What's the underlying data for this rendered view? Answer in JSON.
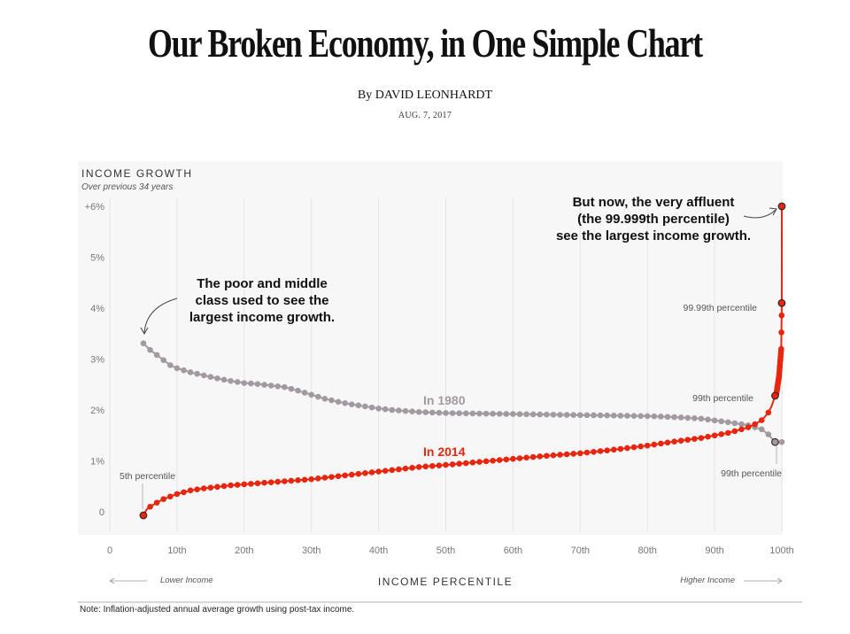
{
  "header": {
    "headline": "Our Broken Economy, in One Simple Chart",
    "byline": "By DAVID LEONHARDT",
    "date": "AUG. 7, 2017"
  },
  "note": "Note: Inflation-adjusted annual average growth using post-tax income.",
  "colors": {
    "series_1980": "#a29aa0",
    "series_2014": "#e8260f",
    "panel_bg": "#f7f7f7",
    "gridline": "#e4e4e4"
  },
  "chart_data": {
    "type": "line",
    "title": "INCOME GROWTH",
    "subtitle": "Over previous 34 years",
    "xlabel": "INCOME PERCENTILE",
    "ylabel": "",
    "xlim": [
      0,
      100
    ],
    "ylim": [
      -0.4,
      6.2
    ],
    "x_ticks": [
      0,
      10,
      20,
      30,
      40,
      50,
      60,
      70,
      80,
      90,
      100
    ],
    "x_tick_labels": [
      "0",
      "10th",
      "20th",
      "30th",
      "40th",
      "50th",
      "60th",
      "70th",
      "80th",
      "90th",
      "100th"
    ],
    "y_ticks": [
      0,
      1,
      2,
      3,
      4,
      5,
      6
    ],
    "y_tick_labels": [
      "0",
      "1%",
      "2%",
      "3%",
      "4%",
      "5%",
      "+6%"
    ],
    "grid": true,
    "x_left_caption": "Lower Income",
    "x_right_caption": "Higher Income",
    "series": [
      {
        "name": "In 1980",
        "x": [
          5,
          6,
          7,
          8,
          9,
          10,
          12,
          14,
          16,
          18,
          20,
          22,
          24,
          26,
          28,
          30,
          32,
          34,
          36,
          38,
          40,
          42,
          44,
          46,
          48,
          50,
          55,
          60,
          65,
          70,
          75,
          80,
          84,
          88,
          92,
          95,
          97,
          98,
          99,
          100
        ],
        "y": [
          3.31,
          3.18,
          3.08,
          2.98,
          2.88,
          2.82,
          2.74,
          2.68,
          2.62,
          2.57,
          2.53,
          2.51,
          2.48,
          2.45,
          2.38,
          2.3,
          2.22,
          2.16,
          2.11,
          2.07,
          2.03,
          2.0,
          1.98,
          1.96,
          1.95,
          1.94,
          1.93,
          1.92,
          1.91,
          1.9,
          1.89,
          1.88,
          1.86,
          1.83,
          1.76,
          1.7,
          1.62,
          1.52,
          1.37,
          1.37
        ]
      },
      {
        "name": "In 2014",
        "x": [
          5,
          5.5,
          6,
          7,
          8,
          9,
          10,
          12,
          14,
          16,
          18,
          20,
          22,
          24,
          26,
          28,
          30,
          32,
          34,
          36,
          38,
          40,
          42,
          44,
          46,
          48,
          50,
          55,
          60,
          65,
          70,
          75,
          80,
          84,
          88,
          90,
          92,
          94,
          95,
          96,
          97,
          97.5,
          98,
          98.5,
          99,
          99.5,
          99.9,
          99.99,
          99.999
        ],
        "y": [
          -0.07,
          0.05,
          0.1,
          0.18,
          0.25,
          0.3,
          0.35,
          0.42,
          0.46,
          0.49,
          0.52,
          0.54,
          0.56,
          0.58,
          0.6,
          0.62,
          0.64,
          0.67,
          0.7,
          0.73,
          0.76,
          0.79,
          0.82,
          0.85,
          0.88,
          0.9,
          0.92,
          0.98,
          1.04,
          1.1,
          1.15,
          1.22,
          1.3,
          1.38,
          1.45,
          1.5,
          1.55,
          1.62,
          1.66,
          1.72,
          1.8,
          1.87,
          1.95,
          2.08,
          2.28,
          2.65,
          3.2,
          4.1,
          6.0
        ]
      }
    ],
    "annotations": {
      "poor_middle": [
        "The poor and middle",
        "class used to see the",
        "largest income growth."
      ],
      "affluent": [
        "But now, the very affluent",
        "(the 99.999th percentile)",
        "see the largest income growth."
      ],
      "label_5th": "5th percentile",
      "label_9999": "99.99th percentile",
      "label_99_2014": "99th percentile",
      "label_99_1980": "99th percentile"
    }
  }
}
